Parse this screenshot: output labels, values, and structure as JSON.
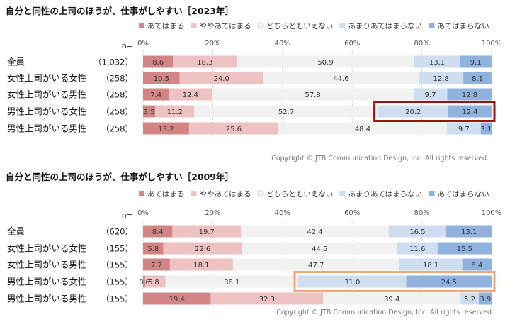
{
  "chart_data": [
    {
      "type": "bar",
      "stacked": true,
      "orientation": "horizontal",
      "title": "自分と同性の上司のほうが、仕事がしやすい［2023年］",
      "n_label": "n=",
      "legend": [
        "あてはまる",
        "ややあてはまる",
        "どちらともいえない",
        "あまりあてはまらない",
        "あてはまらない"
      ],
      "legend_position": "top-right",
      "colors": [
        "#d38585",
        "#eec2c2",
        "#f1f1f1",
        "#cfddf0",
        "#8fb2de"
      ],
      "xlim": [
        0,
        100
      ],
      "xticks": [
        "0%",
        "20%",
        "40%",
        "60%",
        "80%",
        "100%"
      ],
      "grid": true,
      "categories": [
        "全員",
        "女性上司がいる女性",
        "女性上司がいる男性",
        "男性上司がいる女性",
        "男性上司がいる男性"
      ],
      "n_values": [
        "（1,032）",
        "（258）",
        "（258）",
        "（258）",
        "（258）"
      ],
      "values": [
        [
          8.6,
          18.3,
          50.9,
          13.1,
          9.1
        ],
        [
          10.5,
          24.0,
          44.6,
          12.8,
          8.1
        ],
        [
          7.4,
          12.4,
          57.8,
          9.7,
          12.8
        ],
        [
          3.5,
          11.2,
          52.7,
          20.2,
          12.4
        ],
        [
          13.2,
          25.6,
          48.4,
          9.7,
          3.1
        ]
      ],
      "labels": [
        [
          "8.6",
          "18.3",
          "50.9",
          "13.1",
          "9.1"
        ],
        [
          "10.5",
          "24.0",
          "44.6",
          "12.8",
          "8.1"
        ],
        [
          "7.4",
          "12.4",
          "57.8",
          "9.7",
          "12.8"
        ],
        [
          "3.5",
          "11.2",
          "52.7",
          "20.2",
          "12.4"
        ],
        [
          "13.2",
          "25.6",
          "48.4",
          "9.7",
          "3.1"
        ]
      ],
      "highlight": {
        "row": 3,
        "from_segment": 3,
        "color": "#a01010"
      },
      "copyright": "Copyright © JTB Communication Design, Inc. All rights reserved."
    },
    {
      "type": "bar",
      "stacked": true,
      "orientation": "horizontal",
      "title": "自分と同性の上司のほうが、仕事がしやすい［2009年］",
      "n_label": "n=",
      "legend": [
        "あてはまる",
        "ややあてはまる",
        "どちらともいえない",
        "あまりあてはまらない",
        "あてはまらない"
      ],
      "legend_position": "top-right",
      "colors": [
        "#d38585",
        "#eec2c2",
        "#f1f1f1",
        "#cfddf0",
        "#8fb2de"
      ],
      "xlim": [
        0,
        100
      ],
      "xticks": [
        "0%",
        "20%",
        "40%",
        "60%",
        "80%",
        "100%"
      ],
      "grid": true,
      "categories": [
        "全員",
        "女性上司がいる女性",
        "女性上司がいる男性",
        "男性上司がいる女性",
        "男性上司がいる男性"
      ],
      "n_values": [
        "（620）",
        "（155）",
        "（155）",
        "（155）",
        "（155）"
      ],
      "values": [
        [
          8.4,
          19.7,
          42.4,
          16.5,
          13.1
        ],
        [
          5.8,
          22.6,
          44.5,
          11.6,
          15.5
        ],
        [
          7.7,
          18.1,
          47.7,
          18.1,
          8.4
        ],
        [
          0.6,
          5.8,
          38.1,
          31.0,
          24.5
        ],
        [
          19.4,
          32.3,
          39.4,
          5.2,
          3.9
        ]
      ],
      "labels": [
        [
          "8.4",
          "19.7",
          "42.4",
          "16.5",
          "13.1"
        ],
        [
          "5.8",
          "22.6",
          "44.5",
          "11.6",
          "15.5"
        ],
        [
          "7.7",
          "18.1",
          "47.7",
          "18.1",
          "8.4"
        ],
        [
          "",
          "",
          "38.1",
          "31.0",
          "24.5"
        ],
        [
          "19.4",
          "32.3",
          "39.4",
          "5.2",
          "3.9"
        ]
      ],
      "outside_labels": [
        [
          "0.6",
          "5.8"
        ]
      ],
      "highlight": {
        "row": 3,
        "from_segment": 3,
        "color": "#f0a878"
      },
      "copyright": "Copyright © JTB Communication Design, Inc. All rights reserved."
    }
  ]
}
